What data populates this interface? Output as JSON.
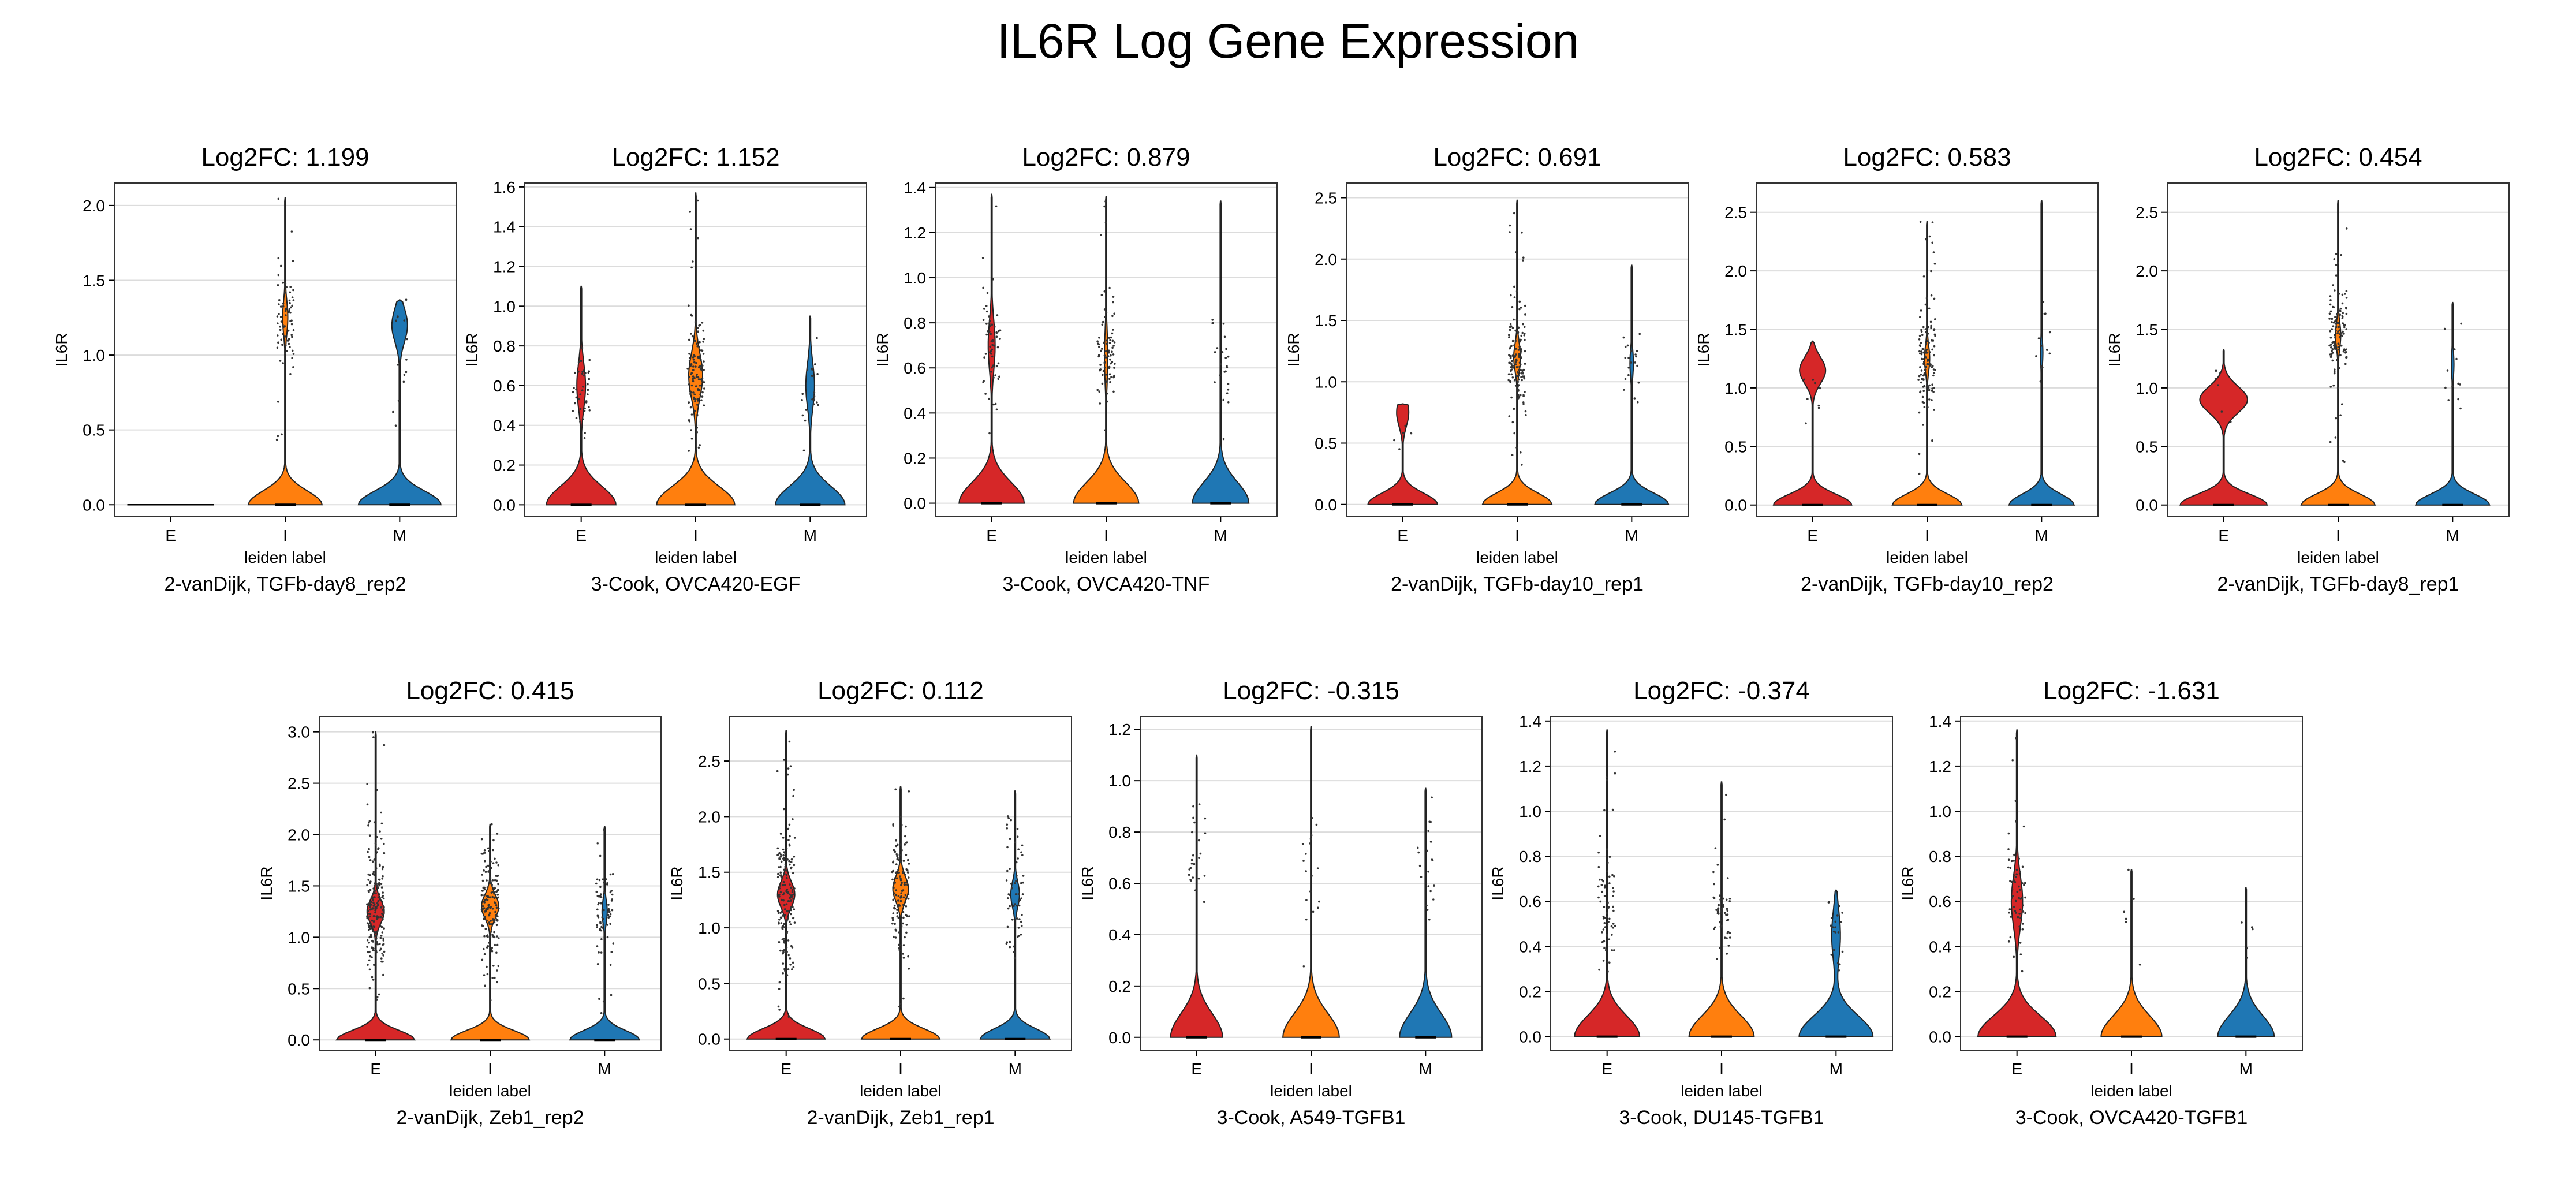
{
  "chart_data": {
    "type": "violin",
    "title": "IL6R Log Gene Expression",
    "xlabel": "leiden label",
    "ylabel": "IL6R",
    "categories": [
      "E",
      "I",
      "M"
    ],
    "colors": {
      "E": "#d62728",
      "I": "#ff7f0e",
      "M": "#1f77b4"
    },
    "panels": [
      {
        "subtitle": "Log2FC: 1.199",
        "caption": "2-vanDijk, TGFb-day8_rep2",
        "ylim": [
          -0.08,
          2.15
        ],
        "yticks": [
          "0.0",
          "0.5",
          "1.0",
          "1.5",
          "2.0"
        ],
        "ytick_values": [
          0,
          0.5,
          1.0,
          1.5,
          2.0
        ],
        "groups": [
          {
            "category": "E",
            "max": 0.0,
            "dense_center": 0.0,
            "dense_spread": 0.0,
            "width": 0.0,
            "bump_center": 0.0,
            "bump_width": 0.0,
            "points": 0
          },
          {
            "category": "I",
            "max": 2.05,
            "dense_center": 1.25,
            "dense_spread": 0.18,
            "width": 0.85,
            "bump_center": 1.25,
            "bump_width": 0.06,
            "points": 80
          },
          {
            "category": "M",
            "max": 1.37,
            "dense_center": 1.1,
            "dense_spread": 0.15,
            "width": 0.95,
            "bump_center": 1.2,
            "bump_width": 0.18,
            "points": 15
          }
        ]
      },
      {
        "subtitle": "Log2FC: 1.152",
        "caption": "3-Cook, OVCA420-EGF",
        "ylim": [
          -0.06,
          1.62
        ],
        "yticks": [
          "0.0",
          "0.2",
          "0.4",
          "0.6",
          "0.8",
          "1.0",
          "1.2",
          "1.4",
          "1.6"
        ],
        "ytick_values": [
          0,
          0.2,
          0.4,
          0.6,
          0.8,
          1.0,
          1.2,
          1.4,
          1.6
        ],
        "groups": [
          {
            "category": "E",
            "max": 1.1,
            "dense_center": 0.6,
            "dense_spread": 0.1,
            "width": 0.8,
            "bump_center": 0.6,
            "bump_width": 0.1,
            "points": 40
          },
          {
            "category": "I",
            "max": 1.57,
            "dense_center": 0.65,
            "dense_spread": 0.12,
            "width": 0.9,
            "bump_center": 0.65,
            "bump_width": 0.16,
            "points": 120
          },
          {
            "category": "M",
            "max": 0.95,
            "dense_center": 0.6,
            "dense_spread": 0.12,
            "width": 0.8,
            "bump_center": 0.6,
            "bump_width": 0.1,
            "points": 20
          }
        ]
      },
      {
        "subtitle": "Log2FC: 0.879",
        "caption": "3-Cook, OVCA420-TNF",
        "ylim": [
          -0.06,
          1.42
        ],
        "yticks": [
          "0.0",
          "0.2",
          "0.4",
          "0.6",
          "0.8",
          "1.0",
          "1.2",
          "1.4"
        ],
        "ytick_values": [
          0,
          0.2,
          0.4,
          0.6,
          0.8,
          1.0,
          1.2,
          1.4
        ],
        "groups": [
          {
            "category": "E",
            "max": 1.37,
            "dense_center": 0.7,
            "dense_spread": 0.13,
            "width": 0.75,
            "bump_center": 0.7,
            "bump_width": 0.08,
            "points": 60
          },
          {
            "category": "I",
            "max": 1.36,
            "dense_center": 0.65,
            "dense_spread": 0.12,
            "width": 0.75,
            "bump_center": 0.65,
            "bump_width": 0.04,
            "points": 80
          },
          {
            "category": "M",
            "max": 1.34,
            "dense_center": 0.6,
            "dense_spread": 0.13,
            "width": 0.65,
            "bump_center": 0.6,
            "bump_width": 0.0,
            "points": 25
          }
        ]
      },
      {
        "subtitle": "Log2FC: 0.691",
        "caption": "2-vanDijk, TGFb-day10_rep1",
        "ylim": [
          -0.1,
          2.62
        ],
        "yticks": [
          "0.0",
          "0.5",
          "1.0",
          "1.5",
          "2.0",
          "2.5"
        ],
        "ytick_values": [
          0,
          0.5,
          1.0,
          1.5,
          2.0,
          2.5
        ],
        "groups": [
          {
            "category": "E",
            "max": 0.82,
            "dense_center": 0.6,
            "dense_spread": 0.12,
            "width": 0.8,
            "bump_center": 0.75,
            "bump_width": 0.14,
            "points": 5
          },
          {
            "category": "I",
            "max": 2.48,
            "dense_center": 1.2,
            "dense_spread": 0.22,
            "width": 0.8,
            "bump_center": 1.2,
            "bump_width": 0.08,
            "points": 140
          },
          {
            "category": "M",
            "max": 1.95,
            "dense_center": 1.15,
            "dense_spread": 0.2,
            "width": 0.85,
            "bump_center": 1.15,
            "bump_width": 0.04,
            "points": 20
          }
        ]
      },
      {
        "subtitle": "Log2FC: 0.583",
        "caption": "2-vanDijk, TGFb-day10_rep2",
        "ylim": [
          -0.1,
          2.75
        ],
        "yticks": [
          "0.0",
          "0.5",
          "1.0",
          "1.5",
          "2.0",
          "2.5"
        ],
        "ytick_values": [
          0,
          0.5,
          1.0,
          1.5,
          2.0,
          2.5
        ],
        "groups": [
          {
            "category": "E",
            "max": 1.4,
            "dense_center": 1.1,
            "dense_spread": 0.15,
            "width": 0.9,
            "bump_center": 1.15,
            "bump_width": 0.3,
            "points": 8
          },
          {
            "category": "I",
            "max": 2.42,
            "dense_center": 1.25,
            "dense_spread": 0.22,
            "width": 0.8,
            "bump_center": 1.25,
            "bump_width": 0.06,
            "points": 130
          },
          {
            "category": "M",
            "max": 2.6,
            "dense_center": 1.3,
            "dense_spread": 0.25,
            "width": 0.75,
            "bump_center": 1.3,
            "bump_width": 0.03,
            "points": 12
          }
        ]
      },
      {
        "subtitle": "Log2FC: 0.454",
        "caption": "2-vanDijk, TGFb-day8_rep1",
        "ylim": [
          -0.1,
          2.75
        ],
        "yticks": [
          "0.0",
          "0.5",
          "1.0",
          "1.5",
          "2.0",
          "2.5"
        ],
        "ytick_values": [
          0,
          0.5,
          1.0,
          1.5,
          2.0,
          2.5
        ],
        "groups": [
          {
            "category": "E",
            "max": 1.33,
            "dense_center": 1.0,
            "dense_spread": 0.2,
            "width": 1.0,
            "bump_center": 0.9,
            "bump_width": 0.55,
            "points": 6
          },
          {
            "category": "I",
            "max": 2.6,
            "dense_center": 1.45,
            "dense_spread": 0.22,
            "width": 0.85,
            "bump_center": 1.45,
            "bump_width": 0.06,
            "points": 130
          },
          {
            "category": "M",
            "max": 1.73,
            "dense_center": 1.2,
            "dense_spread": 0.2,
            "width": 0.85,
            "bump_center": 1.2,
            "bump_width": 0.03,
            "points": 12
          }
        ]
      },
      {
        "subtitle": "Log2FC: 0.415",
        "caption": "2-vanDijk, Zeb1_rep2",
        "ylim": [
          -0.1,
          3.15
        ],
        "yticks": [
          "0.0",
          "0.5",
          "1.0",
          "1.5",
          "2.0",
          "2.5",
          "3.0"
        ],
        "ytick_values": [
          0,
          0.5,
          1.0,
          1.5,
          2.0,
          2.5,
          3.0
        ],
        "groups": [
          {
            "category": "E",
            "max": 3.0,
            "dense_center": 1.25,
            "dense_spread": 0.3,
            "width": 0.9,
            "bump_center": 1.25,
            "bump_width": 0.2,
            "points": 220
          },
          {
            "category": "I",
            "max": 2.1,
            "dense_center": 1.3,
            "dense_spread": 0.3,
            "width": 0.9,
            "bump_center": 1.3,
            "bump_width": 0.2,
            "points": 160
          },
          {
            "category": "M",
            "max": 2.08,
            "dense_center": 1.25,
            "dense_spread": 0.3,
            "width": 0.8,
            "bump_center": 1.25,
            "bump_width": 0.06,
            "points": 70
          }
        ]
      },
      {
        "subtitle": "Log2FC: 0.112",
        "caption": "2-vanDijk, Zeb1_rep1",
        "ylim": [
          -0.1,
          2.9
        ],
        "yticks": [
          "0.0",
          "0.5",
          "1.0",
          "1.5",
          "2.0",
          "2.5"
        ],
        "ytick_values": [
          0,
          0.5,
          1.0,
          1.5,
          2.0,
          2.5
        ],
        "groups": [
          {
            "category": "E",
            "max": 2.77,
            "dense_center": 1.3,
            "dense_spread": 0.3,
            "width": 0.9,
            "bump_center": 1.3,
            "bump_width": 0.2,
            "points": 180
          },
          {
            "category": "I",
            "max": 2.27,
            "dense_center": 1.35,
            "dense_spread": 0.3,
            "width": 0.9,
            "bump_center": 1.35,
            "bump_width": 0.18,
            "points": 130
          },
          {
            "category": "M",
            "max": 2.23,
            "dense_center": 1.3,
            "dense_spread": 0.3,
            "width": 0.8,
            "bump_center": 1.3,
            "bump_width": 0.1,
            "points": 60
          }
        ]
      },
      {
        "subtitle": "Log2FC: -0.315",
        "caption": "3-Cook, A549-TGFB1",
        "ylim": [
          -0.05,
          1.25
        ],
        "yticks": [
          "0.0",
          "0.2",
          "0.4",
          "0.6",
          "0.8",
          "1.0",
          "1.2"
        ],
        "ytick_values": [
          0,
          0.2,
          0.4,
          0.6,
          0.8,
          1.0,
          1.2
        ],
        "groups": [
          {
            "category": "E",
            "max": 1.1,
            "dense_center": 0.7,
            "dense_spread": 0.12,
            "width": 0.6,
            "bump_center": 0.7,
            "bump_width": 0.0,
            "points": 25
          },
          {
            "category": "I",
            "max": 1.21,
            "dense_center": 0.6,
            "dense_spread": 0.15,
            "width": 0.65,
            "bump_center": 0.6,
            "bump_width": 0.0,
            "points": 18
          },
          {
            "category": "M",
            "max": 0.97,
            "dense_center": 0.6,
            "dense_spread": 0.15,
            "width": 0.6,
            "bump_center": 0.6,
            "bump_width": 0.0,
            "points": 20
          }
        ]
      },
      {
        "subtitle": "Log2FC: -0.374",
        "caption": "3-Cook, DU145-TGFB1",
        "ylim": [
          -0.06,
          1.42
        ],
        "yticks": [
          "0.0",
          "0.2",
          "0.4",
          "0.6",
          "0.8",
          "1.0",
          "1.2",
          "1.4"
        ],
        "ytick_values": [
          0,
          0.2,
          0.4,
          0.6,
          0.8,
          1.0,
          1.2,
          1.4
        ],
        "groups": [
          {
            "category": "E",
            "max": 1.36,
            "dense_center": 0.55,
            "dense_spread": 0.12,
            "width": 0.75,
            "bump_center": 0.55,
            "bump_width": 0.0,
            "points": 70
          },
          {
            "category": "I",
            "max": 1.13,
            "dense_center": 0.55,
            "dense_spread": 0.1,
            "width": 0.75,
            "bump_center": 0.55,
            "bump_width": 0.0,
            "points": 55
          },
          {
            "category": "M",
            "max": 0.65,
            "dense_center": 0.45,
            "dense_spread": 0.08,
            "width": 0.85,
            "bump_center": 0.45,
            "bump_width": 0.1,
            "points": 20
          }
        ]
      },
      {
        "subtitle": "Log2FC: -1.631",
        "caption": "3-Cook, OVCA420-TGFB1",
        "ylim": [
          -0.06,
          1.42
        ],
        "yticks": [
          "0.0",
          "0.2",
          "0.4",
          "0.6",
          "0.8",
          "1.0",
          "1.2",
          "1.4"
        ],
        "ytick_values": [
          0,
          0.2,
          0.4,
          0.6,
          0.8,
          1.0,
          1.2,
          1.4
        ],
        "groups": [
          {
            "category": "E",
            "max": 1.36,
            "dense_center": 0.6,
            "dense_spread": 0.12,
            "width": 0.9,
            "bump_center": 0.6,
            "bump_width": 0.13,
            "points": 60
          },
          {
            "category": "I",
            "max": 0.74,
            "dense_center": 0.55,
            "dense_spread": 0.12,
            "width": 0.7,
            "bump_center": 0.55,
            "bump_width": 0.0,
            "points": 6
          },
          {
            "category": "M",
            "max": 0.66,
            "dense_center": 0.45,
            "dense_spread": 0.12,
            "width": 0.65,
            "bump_center": 0.45,
            "bump_width": 0.0,
            "points": 5
          }
        ]
      }
    ]
  }
}
